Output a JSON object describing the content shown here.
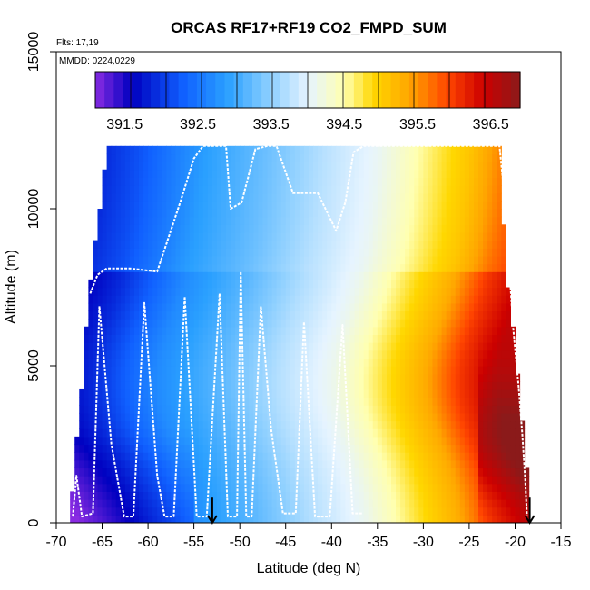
{
  "chart_data": {
    "type": "heatmap",
    "title": "ORCAS RF17+RF19 CO2_FMPD_SUM",
    "xlabel": "Latitude (deg N)",
    "ylabel": "Altitude (m)",
    "xlim": [
      -70,
      -15
    ],
    "ylim": [
      0,
      15000
    ],
    "x_ticks": [
      -70,
      -65,
      -60,
      -55,
      -50,
      -45,
      -40,
      -35,
      -30,
      -25,
      -20,
      -15
    ],
    "x_tick_labels": [
      "-70",
      "-65",
      "-60",
      "-55",
      "-50",
      "-45",
      "-40",
      "-35",
      "-30",
      "-25",
      "-20",
      "-15"
    ],
    "y_ticks": [
      0,
      5000,
      10000,
      15000
    ],
    "y_tick_labels": [
      "0",
      "5000",
      "10000",
      "15000"
    ],
    "flights_note": "Flts: 17,19",
    "dates_note": "MMDD: 0224,0229",
    "colorbar": {
      "min": 391.1,
      "max": 396.9,
      "tick_values": [
        391.5,
        392.5,
        393.5,
        394.5,
        395.5,
        396.5
      ],
      "tick_labels": [
        "391.5",
        "392.5",
        "393.5",
        "394.5",
        "395.5",
        "396.5"
      ],
      "colors": [
        "#8a2be2",
        "#0000c0",
        "#1060ff",
        "#2aa0ff",
        "#8fd0ff",
        "#e6f4ff",
        "#ffffb0",
        "#ffd700",
        "#ffa500",
        "#ff4500",
        "#cc0000",
        "#8b1a1a"
      ],
      "stops": [
        391.1,
        391.6,
        392.3,
        392.9,
        393.5,
        394.0,
        394.5,
        394.9,
        395.4,
        395.9,
        396.4,
        396.9
      ]
    },
    "field": {
      "top_lat_by_alt": [
        [
          0,
          -68.5
        ],
        [
          2000,
          -68.0
        ],
        [
          4000,
          -67.3
        ],
        [
          6000,
          -66.8
        ],
        [
          8000,
          -66.2
        ],
        [
          10000,
          -65.3
        ],
        [
          11000,
          -64.8
        ],
        [
          12000,
          -64.5
        ]
      ],
      "bottom_lat_by_alt": [
        [
          0,
          -18.5
        ],
        [
          2000,
          -18.8
        ],
        [
          4000,
          -19.5
        ],
        [
          6000,
          -20.2
        ],
        [
          8000,
          -20.9
        ],
        [
          10000,
          -21.4
        ],
        [
          12000,
          -21.7
        ]
      ],
      "color_at_lat_alt": "banded by latitude with tilt: low values (~391.5) near -68 to -55 at low altitude, transitioning through 393.5-394 near -40, to high values (~396.5) near -20 at 2000-4000 m"
    },
    "flight_track": {
      "color": "#ffffff",
      "points": [
        [
          -68.2,
          200
        ],
        [
          -67.8,
          1500
        ],
        [
          -67.2,
          200
        ],
        [
          -66.0,
          300
        ],
        [
          -65.3,
          6900
        ],
        [
          -64.0,
          2500
        ],
        [
          -62.6,
          200
        ],
        [
          -61.6,
          200
        ],
        [
          -60.4,
          7000
        ],
        [
          -59.0,
          1500
        ],
        [
          -58.2,
          200
        ],
        [
          -57.2,
          200
        ],
        [
          -56.0,
          7200
        ],
        [
          -54.7,
          200
        ],
        [
          -53.6,
          200
        ],
        [
          -52.2,
          7300
        ],
        [
          -51.3,
          200
        ],
        [
          -50.3,
          200
        ],
        [
          -49.9,
          8000
        ],
        [
          -49.3,
          200
        ],
        [
          -48.7,
          200
        ],
        [
          -47.7,
          6900
        ],
        [
          -46.6,
          3000
        ],
        [
          -45.3,
          300
        ],
        [
          -43.9,
          300
        ],
        [
          -43.0,
          6400
        ],
        [
          -41.8,
          200
        ],
        [
          -40.2,
          200
        ],
        [
          -38.8,
          6300
        ],
        [
          -37.7,
          300
        ],
        [
          -36.6,
          300
        ]
      ],
      "upper_track": [
        [
          -66.3,
          7300
        ],
        [
          -65.5,
          7900
        ],
        [
          -64.5,
          8100
        ],
        [
          -62.0,
          8100
        ],
        [
          -59.0,
          8000
        ],
        [
          -56.5,
          10200
        ],
        [
          -55.0,
          11600
        ],
        [
          -54.0,
          12000
        ],
        [
          -51.5,
          12000
        ],
        [
          -51.0,
          10000
        ],
        [
          -49.8,
          10200
        ],
        [
          -48.3,
          11900
        ],
        [
          -47.0,
          12000
        ],
        [
          -46.0,
          12000
        ],
        [
          -44.2,
          10500
        ],
        [
          -41.5,
          10500
        ],
        [
          -39.5,
          9300
        ],
        [
          -38.5,
          10200
        ],
        [
          -37.6,
          11800
        ],
        [
          -36.5,
          12000
        ],
        [
          -30.0,
          12000
        ],
        [
          -23.0,
          12000
        ],
        [
          -21.7,
          12000
        ],
        [
          -21.0,
          10000
        ],
        [
          -20.6,
          8000
        ],
        [
          -20.2,
          6200
        ],
        [
          -19.6,
          4300
        ],
        [
          -19.2,
          2800
        ],
        [
          -18.9,
          1400
        ],
        [
          -18.7,
          200
        ]
      ]
    },
    "markers": [
      {
        "lat": -53.0,
        "alt": 400,
        "type": "down-arrow"
      },
      {
        "lat": -18.4,
        "alt": 400,
        "type": "down-arrow"
      }
    ]
  }
}
